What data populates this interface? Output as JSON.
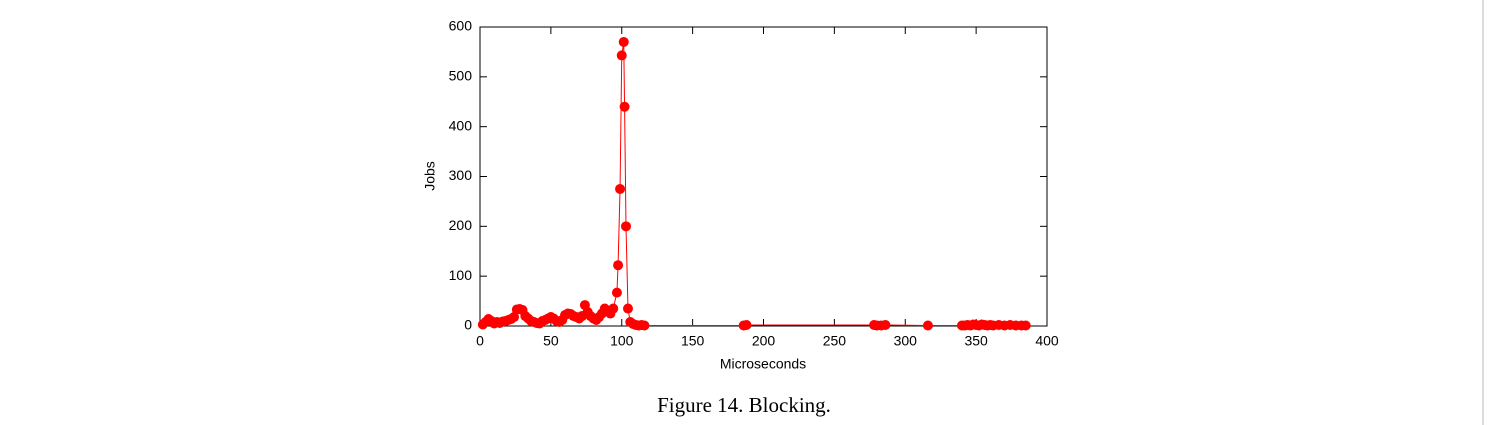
{
  "chart_data": {
    "type": "line",
    "caption": "Figure 14. Blocking.",
    "xlabel": "Microseconds",
    "ylabel": "Jobs",
    "x": [
      2,
      4,
      6,
      8,
      10,
      12,
      14,
      16,
      18,
      20,
      22,
      24,
      26,
      28,
      30,
      32,
      34,
      36,
      38,
      40,
      42,
      44,
      46,
      48,
      50,
      52,
      54,
      56,
      58,
      60,
      62,
      64,
      66,
      68,
      70,
      72,
      74,
      76,
      78,
      80,
      82,
      84,
      86,
      88,
      90,
      92,
      94,
      96.6,
      97.4,
      98.8,
      100,
      101.4,
      102,
      103,
      104.4,
      106,
      108,
      110,
      112,
      114,
      116,
      186,
      188,
      278,
      280,
      283,
      286,
      316,
      340,
      342,
      344,
      346,
      348,
      350,
      352,
      354,
      356,
      358,
      360,
      362,
      366,
      370,
      374,
      378,
      382,
      385
    ],
    "series": [
      {
        "color": "#ff0000",
        "values": [
          3,
          8,
          14,
          10,
          5,
          8,
          6,
          9,
          10,
          12,
          14,
          18,
          33,
          34,
          32,
          20,
          15,
          10,
          8,
          6,
          5,
          10,
          12,
          15,
          18,
          15,
          10,
          8,
          12,
          22,
          25,
          24,
          20,
          18,
          15,
          20,
          42,
          28,
          20,
          15,
          12,
          18,
          25,
          35,
          30,
          25,
          35,
          67,
          122,
          275,
          543,
          570,
          440,
          200,
          35,
          8,
          4,
          2,
          1,
          2,
          1,
          1,
          2,
          2,
          1,
          1,
          2,
          1,
          1,
          1,
          2,
          1,
          3,
          2,
          1,
          3,
          2,
          1,
          2,
          1,
          2,
          1,
          2,
          1,
          1,
          1
        ]
      }
    ],
    "xlim": [
      0,
      400
    ],
    "ylim": [
      0,
      600
    ],
    "xticks": [
      0,
      50,
      100,
      150,
      200,
      250,
      300,
      350,
      400
    ],
    "yticks": [
      0,
      100,
      200,
      300,
      400,
      500,
      600
    ]
  }
}
